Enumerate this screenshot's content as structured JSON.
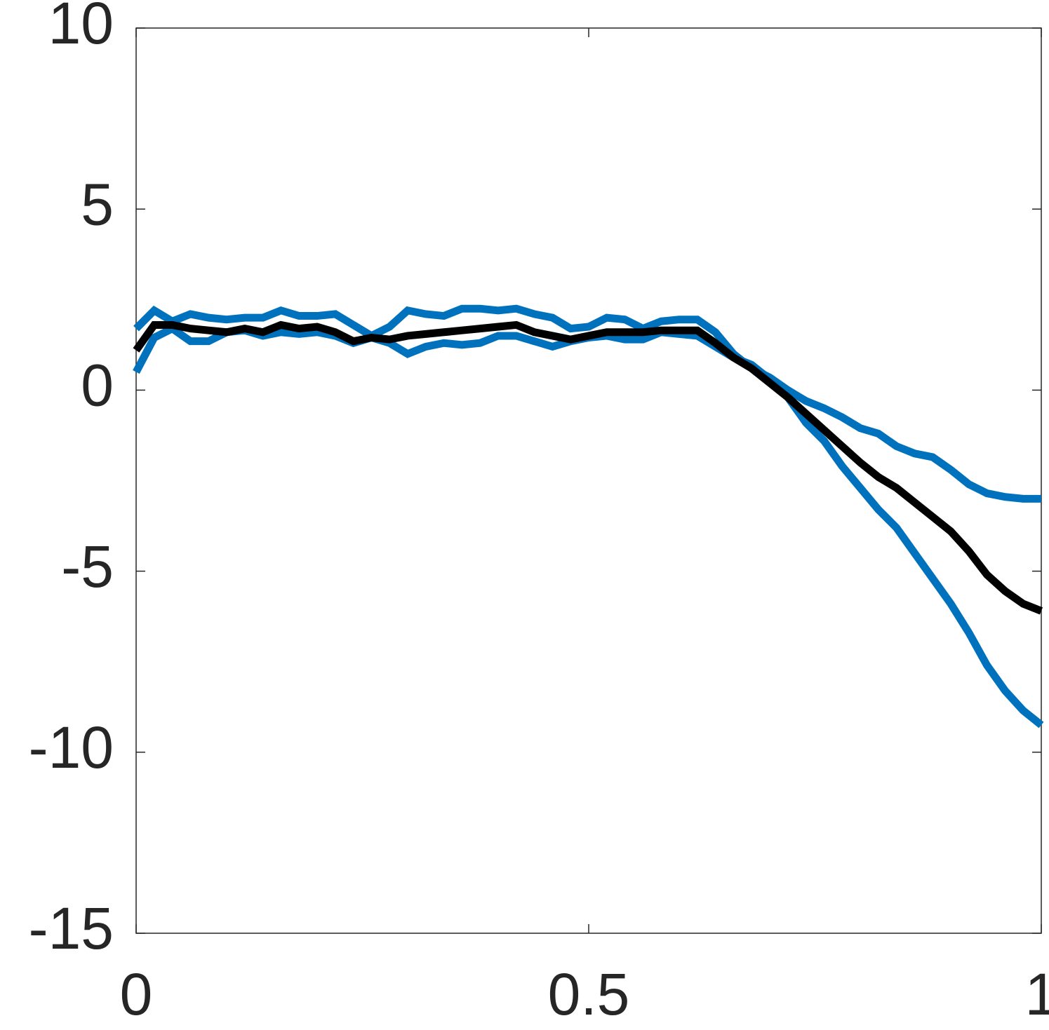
{
  "chart_data": {
    "type": "line",
    "x": [
      0,
      0.02,
      0.04,
      0.06,
      0.08,
      0.1,
      0.12,
      0.14,
      0.16,
      0.18,
      0.2,
      0.22,
      0.24,
      0.26,
      0.28,
      0.3,
      0.32,
      0.34,
      0.36,
      0.38,
      0.4,
      0.42,
      0.44,
      0.46,
      0.48,
      0.5,
      0.52,
      0.54,
      0.56,
      0.58,
      0.6,
      0.62,
      0.64,
      0.66,
      0.68,
      0.7,
      0.72,
      0.74,
      0.76,
      0.78,
      0.8,
      0.82,
      0.84,
      0.86,
      0.88,
      0.9,
      0.92,
      0.94,
      0.96,
      0.98,
      1
    ],
    "series": [
      {
        "color": "#000000",
        "values": [
          1.1,
          1.8,
          1.8,
          1.7,
          1.65,
          1.6,
          1.7,
          1.6,
          1.8,
          1.7,
          1.75,
          1.6,
          1.35,
          1.45,
          1.4,
          1.5,
          1.55,
          1.6,
          1.65,
          1.7,
          1.75,
          1.8,
          1.6,
          1.5,
          1.4,
          1.5,
          1.6,
          1.6,
          1.6,
          1.65,
          1.65,
          1.65,
          1.3,
          0.9,
          0.6,
          0.2,
          -0.2,
          -0.65,
          -1.1,
          -1.55,
          -2.0,
          -2.4,
          -2.7,
          -3.1,
          -3.5,
          -3.9,
          -4.45,
          -5.1,
          -5.55,
          -5.9,
          -6.1
        ]
      },
      {
        "color": "#0072bd",
        "values": [
          1.7,
          2.2,
          1.9,
          2.1,
          2.0,
          1.95,
          2.0,
          2.0,
          2.2,
          2.05,
          2.05,
          2.1,
          1.8,
          1.5,
          1.75,
          2.2,
          2.1,
          2.05,
          2.25,
          2.25,
          2.2,
          2.25,
          2.1,
          2.0,
          1.7,
          1.75,
          2.0,
          1.95,
          1.7,
          1.9,
          1.95,
          1.95,
          1.6,
          1.0,
          0.6,
          0.35,
          0.0,
          -0.3,
          -0.5,
          -0.75,
          -1.05,
          -1.2,
          -1.55,
          -1.75,
          -1.85,
          -2.2,
          -2.6,
          -2.85,
          -2.95,
          -3.0,
          -3.0
        ]
      },
      {
        "color": "#0072bd",
        "values": [
          0.5,
          1.45,
          1.7,
          1.35,
          1.35,
          1.6,
          1.65,
          1.5,
          1.6,
          1.55,
          1.6,
          1.5,
          1.3,
          1.45,
          1.3,
          1.0,
          1.2,
          1.3,
          1.25,
          1.3,
          1.5,
          1.5,
          1.35,
          1.2,
          1.35,
          1.45,
          1.5,
          1.4,
          1.4,
          1.6,
          1.55,
          1.5,
          1.2,
          0.9,
          0.7,
          0.3,
          -0.2,
          -0.9,
          -1.4,
          -2.1,
          -2.7,
          -3.3,
          -3.8,
          -4.5,
          -5.2,
          -5.9,
          -6.7,
          -7.6,
          -8.3,
          -8.85,
          -9.25
        ]
      }
    ],
    "xlim": [
      0,
      1
    ],
    "xticks": [
      0,
      0.5,
      1
    ],
    "ylim": [
      -15,
      10
    ],
    "yticks": [
      -15,
      -10,
      -5,
      0,
      5,
      10
    ],
    "grid": false
  }
}
